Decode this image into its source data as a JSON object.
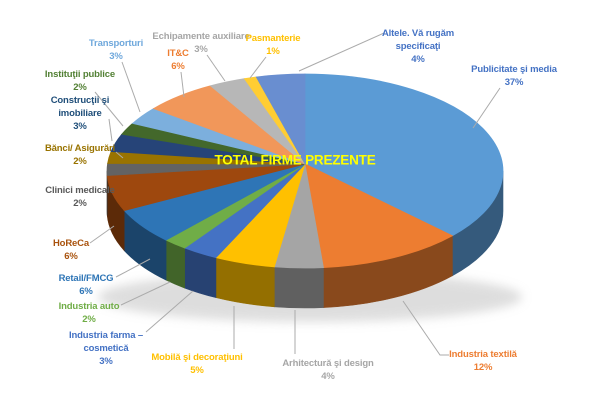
{
  "chart_data": {
    "type": "pie",
    "is_3d": true,
    "title": "TOTAL FIRME PREZENTE",
    "title_color": "#FFFF00",
    "background_color": "#FFFFFF",
    "legend": "none",
    "start_angle_deg": 0,
    "direction": "clockwise",
    "labels_outside_with_leader_lines": true,
    "unit": "%",
    "categories": [
      "Publicitate şi media",
      "Industria textilă",
      "Arhitectură şi design",
      "Mobilă şi decoraţiuni",
      "Industria farma – cosmetică",
      "Industria auto",
      "Retail/FMCG",
      "HoReCa",
      "Clinici medicale",
      "Bănci/ Asigurări",
      "Construcţii şi imobiliare",
      "Instituţii publice",
      "Transporturi",
      "IT&C",
      "Echipamente auxiliare",
      "Pasmanterie",
      "Altele. Vă rugăm specificaţi"
    ],
    "values": [
      37,
      12,
      4,
      5,
      3,
      2,
      6,
      6,
      2,
      2,
      3,
      2,
      3,
      6,
      3,
      1,
      4
    ],
    "slice_colors": [
      "#5B9BD5",
      "#ED7D31",
      "#A5A5A5",
      "#FFC000",
      "#4472C4",
      "#70AD47",
      "#2E75B6",
      "#9E480E",
      "#636363",
      "#997300",
      "#264478",
      "#43682B",
      "#7CAFDD",
      "#F1975A",
      "#B7B7B7",
      "#FFCD33",
      "#698ED0"
    ],
    "labels": [
      {
        "lines": [
          "Publicitate şi media"
        ],
        "pct": "37%",
        "color": "#4472C4"
      },
      {
        "lines": [
          "Industria textilă"
        ],
        "pct": "12%",
        "color": "#ED7D31"
      },
      {
        "lines": [
          "Arhitectură şi design"
        ],
        "pct": "4%",
        "color": "#A6A6A6"
      },
      {
        "lines": [
          "Mobilă şi decoraţiuni"
        ],
        "pct": "5%",
        "color": "#FFC000"
      },
      {
        "lines": [
          "Industria farma –",
          "cosmetică"
        ],
        "pct": "3%",
        "color": "#4472C4"
      },
      {
        "lines": [
          "Industria auto"
        ],
        "pct": "2%",
        "color": "#70AD47"
      },
      {
        "lines": [
          "Retail/FMCG"
        ],
        "pct": "6%",
        "color": "#2E75B6"
      },
      {
        "lines": [
          "HoReCa"
        ],
        "pct": "6%",
        "color": "#A9530E"
      },
      {
        "lines": [
          "Clinici medicale"
        ],
        "pct": "2%",
        "color": "#595959"
      },
      {
        "lines": [
          "Bănci/ Asigurări"
        ],
        "pct": "2%",
        "color": "#997300"
      },
      {
        "lines": [
          "Construcţii şi",
          "imobiliare"
        ],
        "pct": "3%",
        "color": "#1F4E79"
      },
      {
        "lines": [
          "Instituţii publice"
        ],
        "pct": "2%",
        "color": "#538135"
      },
      {
        "lines": [
          "Transporturi"
        ],
        "pct": "3%",
        "color": "#6FA8DC"
      },
      {
        "lines": [
          "IT&C"
        ],
        "pct": "6%",
        "color": "#ED7D31"
      },
      {
        "lines": [
          "Echipamente auxiliare"
        ],
        "pct": "3%",
        "color": "#A6A6A6"
      },
      {
        "lines": [
          "Pasmanterie"
        ],
        "pct": "1%",
        "color": "#FFC000"
      },
      {
        "lines": [
          "Altele. Vă rugăm",
          "specificaţi"
        ],
        "pct": "4%",
        "color": "#4472C4"
      }
    ]
  }
}
